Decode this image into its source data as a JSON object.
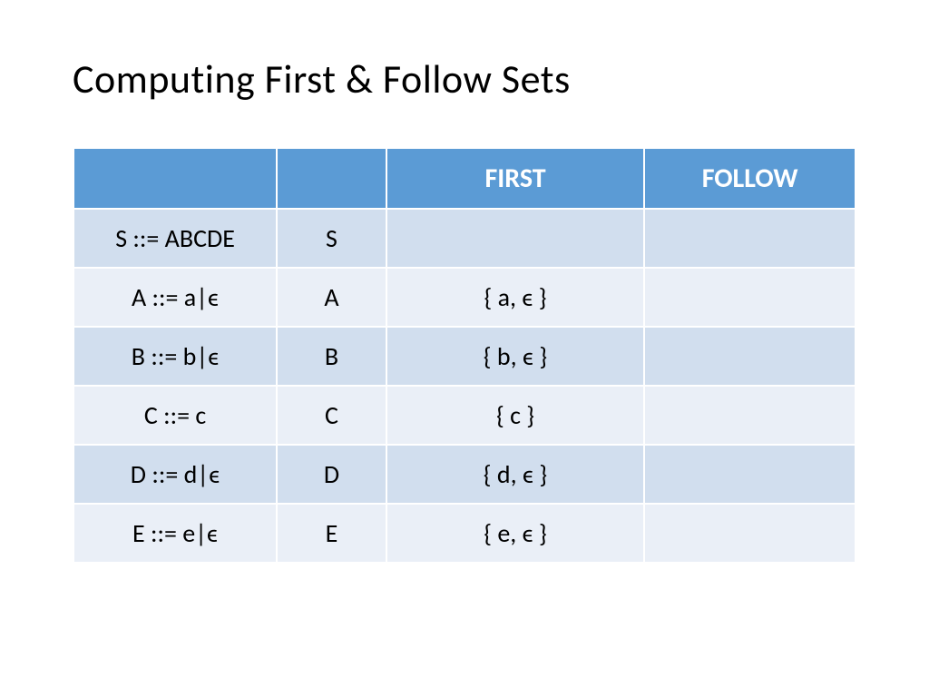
{
  "title": "Computing First & Follow Sets",
  "headers": {
    "col0": "",
    "col1": "",
    "col2": "FIRST",
    "col3": "FOLLOW"
  },
  "rows": [
    {
      "rule": "S ::= ABCDE",
      "symbol": "S",
      "first": "",
      "follow": ""
    },
    {
      "rule": "A ::= a|ϵ",
      "symbol": "A",
      "first": "{ a, ϵ }",
      "follow": ""
    },
    {
      "rule": "B ::= b|ϵ",
      "symbol": "B",
      "first": "{ b, ϵ }",
      "follow": ""
    },
    {
      "rule": "C ::= c",
      "symbol": "C",
      "first": "{ c }",
      "follow": ""
    },
    {
      "rule": "D ::= d|ϵ",
      "symbol": "D",
      "first": "{ d, ϵ }",
      "follow": ""
    },
    {
      "rule": "E ::= e|ϵ",
      "symbol": "E",
      "first": "{ e, ϵ }",
      "follow": ""
    }
  ],
  "colors": {
    "header_bg": "#5b9bd5",
    "header_text": "#ffffff",
    "row_dark": "#d1deee",
    "row_light": "#eaeff7",
    "first_text": "#e8261c",
    "body_text": "#000000"
  },
  "font": {
    "title_size": 44,
    "header_size": 30,
    "cell_size": 28
  }
}
